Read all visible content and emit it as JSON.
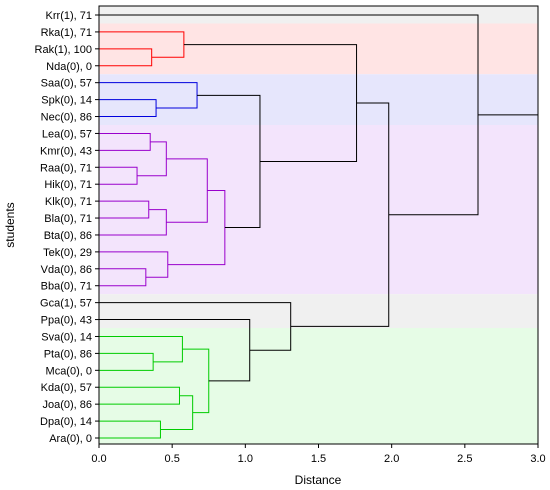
{
  "chart_data": {
    "type": "dendrogram",
    "orientation": "horizontal",
    "xlabel": "Distance",
    "ylabel": "students",
    "xlim": [
      0,
      3.0
    ],
    "xticks": [
      "0.0",
      "0.5",
      "1.0",
      "1.5",
      "2.0",
      "2.5",
      "3.0"
    ],
    "grid": false,
    "leaves": [
      {
        "label": "Krr(1), 71"
      },
      {
        "label": "Rka(1), 71"
      },
      {
        "label": "Rak(1), 100"
      },
      {
        "label": "Nda(0), 0"
      },
      {
        "label": "Saa(0), 57"
      },
      {
        "label": "Spk(0), 14"
      },
      {
        "label": "Nec(0), 86"
      },
      {
        "label": "Lea(0), 57"
      },
      {
        "label": "Kmr(0), 43"
      },
      {
        "label": "Raa(0), 71"
      },
      {
        "label": "Hik(0), 71"
      },
      {
        "label": "Klk(0), 71"
      },
      {
        "label": "Bla(0), 71"
      },
      {
        "label": "Bta(0), 86"
      },
      {
        "label": "Tek(0), 29"
      },
      {
        "label": "Vda(0), 86"
      },
      {
        "label": "Bba(0), 71"
      },
      {
        "label": "Gca(1), 57"
      },
      {
        "label": "Ppa(0), 43"
      },
      {
        "label": "Sva(0), 14"
      },
      {
        "label": "Pta(0), 86"
      },
      {
        "label": "Mca(0), 0"
      },
      {
        "label": "Kda(0), 57"
      },
      {
        "label": "Joa(0), 86"
      },
      {
        "label": "Dpa(0), 14"
      },
      {
        "label": "Ara(0), 0"
      }
    ],
    "merges": [
      {
        "id": "m1",
        "a": 2,
        "b": 3,
        "height": 0.36,
        "color": "#ff0000"
      },
      {
        "id": "m2",
        "a": 1,
        "b": "m1",
        "height": 0.58,
        "color": "#ff0000"
      },
      {
        "id": "m3",
        "a": 5,
        "b": 6,
        "height": 0.39,
        "color": "#0000dd"
      },
      {
        "id": "m4",
        "a": 4,
        "b": "m3",
        "height": 0.67,
        "color": "#0000dd"
      },
      {
        "id": "m5",
        "a": 7,
        "b": 8,
        "height": 0.35,
        "color": "#9900cc"
      },
      {
        "id": "m6",
        "a": 9,
        "b": 10,
        "height": 0.26,
        "color": "#9900cc"
      },
      {
        "id": "m7",
        "a": "m5",
        "b": "m6",
        "height": 0.46,
        "color": "#9900cc"
      },
      {
        "id": "m8",
        "a": 11,
        "b": 12,
        "height": 0.34,
        "color": "#9900cc"
      },
      {
        "id": "m9",
        "a": "m8",
        "b": 13,
        "height": 0.46,
        "color": "#9900cc"
      },
      {
        "id": "m10",
        "a": "m7",
        "b": "m9",
        "height": 0.74,
        "color": "#9900cc"
      },
      {
        "id": "m11",
        "a": 15,
        "b": 16,
        "height": 0.32,
        "color": "#9900cc"
      },
      {
        "id": "m12",
        "a": 14,
        "b": "m11",
        "height": 0.47,
        "color": "#9900cc"
      },
      {
        "id": "m13",
        "a": "m10",
        "b": "m12",
        "height": 0.86,
        "color": "#9900cc"
      },
      {
        "id": "m14",
        "a": "m4",
        "b": "m13",
        "height": 1.1,
        "color": "#000000"
      },
      {
        "id": "m15",
        "a": "m2",
        "b": "m14",
        "height": 1.76,
        "color": "#000000"
      },
      {
        "id": "m16",
        "a": 20,
        "b": 21,
        "height": 0.37,
        "color": "#00cc00"
      },
      {
        "id": "m17",
        "a": 19,
        "b": "m16",
        "height": 0.57,
        "color": "#00cc00"
      },
      {
        "id": "m18",
        "a": 22,
        "b": 23,
        "height": 0.55,
        "color": "#00cc00"
      },
      {
        "id": "m19",
        "a": 24,
        "b": 25,
        "height": 0.42,
        "color": "#00cc00"
      },
      {
        "id": "m20",
        "a": "m18",
        "b": "m19",
        "height": 0.64,
        "color": "#00cc00"
      },
      {
        "id": "m21",
        "a": "m17",
        "b": "m20",
        "height": 0.75,
        "color": "#00cc00"
      },
      {
        "id": "m22",
        "a": 18,
        "b": "m21",
        "height": 1.03,
        "color": "#000000"
      },
      {
        "id": "m23",
        "a": 17,
        "b": "m22",
        "height": 1.31,
        "color": "#000000"
      },
      {
        "id": "m24",
        "a": "m15",
        "b": "m23",
        "height": 1.98,
        "color": "#000000"
      },
      {
        "id": "m25",
        "a": 0,
        "b": "m24",
        "height": 2.59,
        "color": "#000000"
      }
    ],
    "bands": [
      {
        "from": 0,
        "to": 0,
        "color": "#f0f0f0"
      },
      {
        "from": 1,
        "to": 3,
        "color": "#ffe4e4"
      },
      {
        "from": 4,
        "to": 6,
        "color": "#e6e6fc"
      },
      {
        "from": 7,
        "to": 16,
        "color": "#f3e4fc"
      },
      {
        "from": 17,
        "to": 18,
        "color": "#f0f0f0"
      },
      {
        "from": 19,
        "to": 25,
        "color": "#e6fce6"
      }
    ]
  }
}
